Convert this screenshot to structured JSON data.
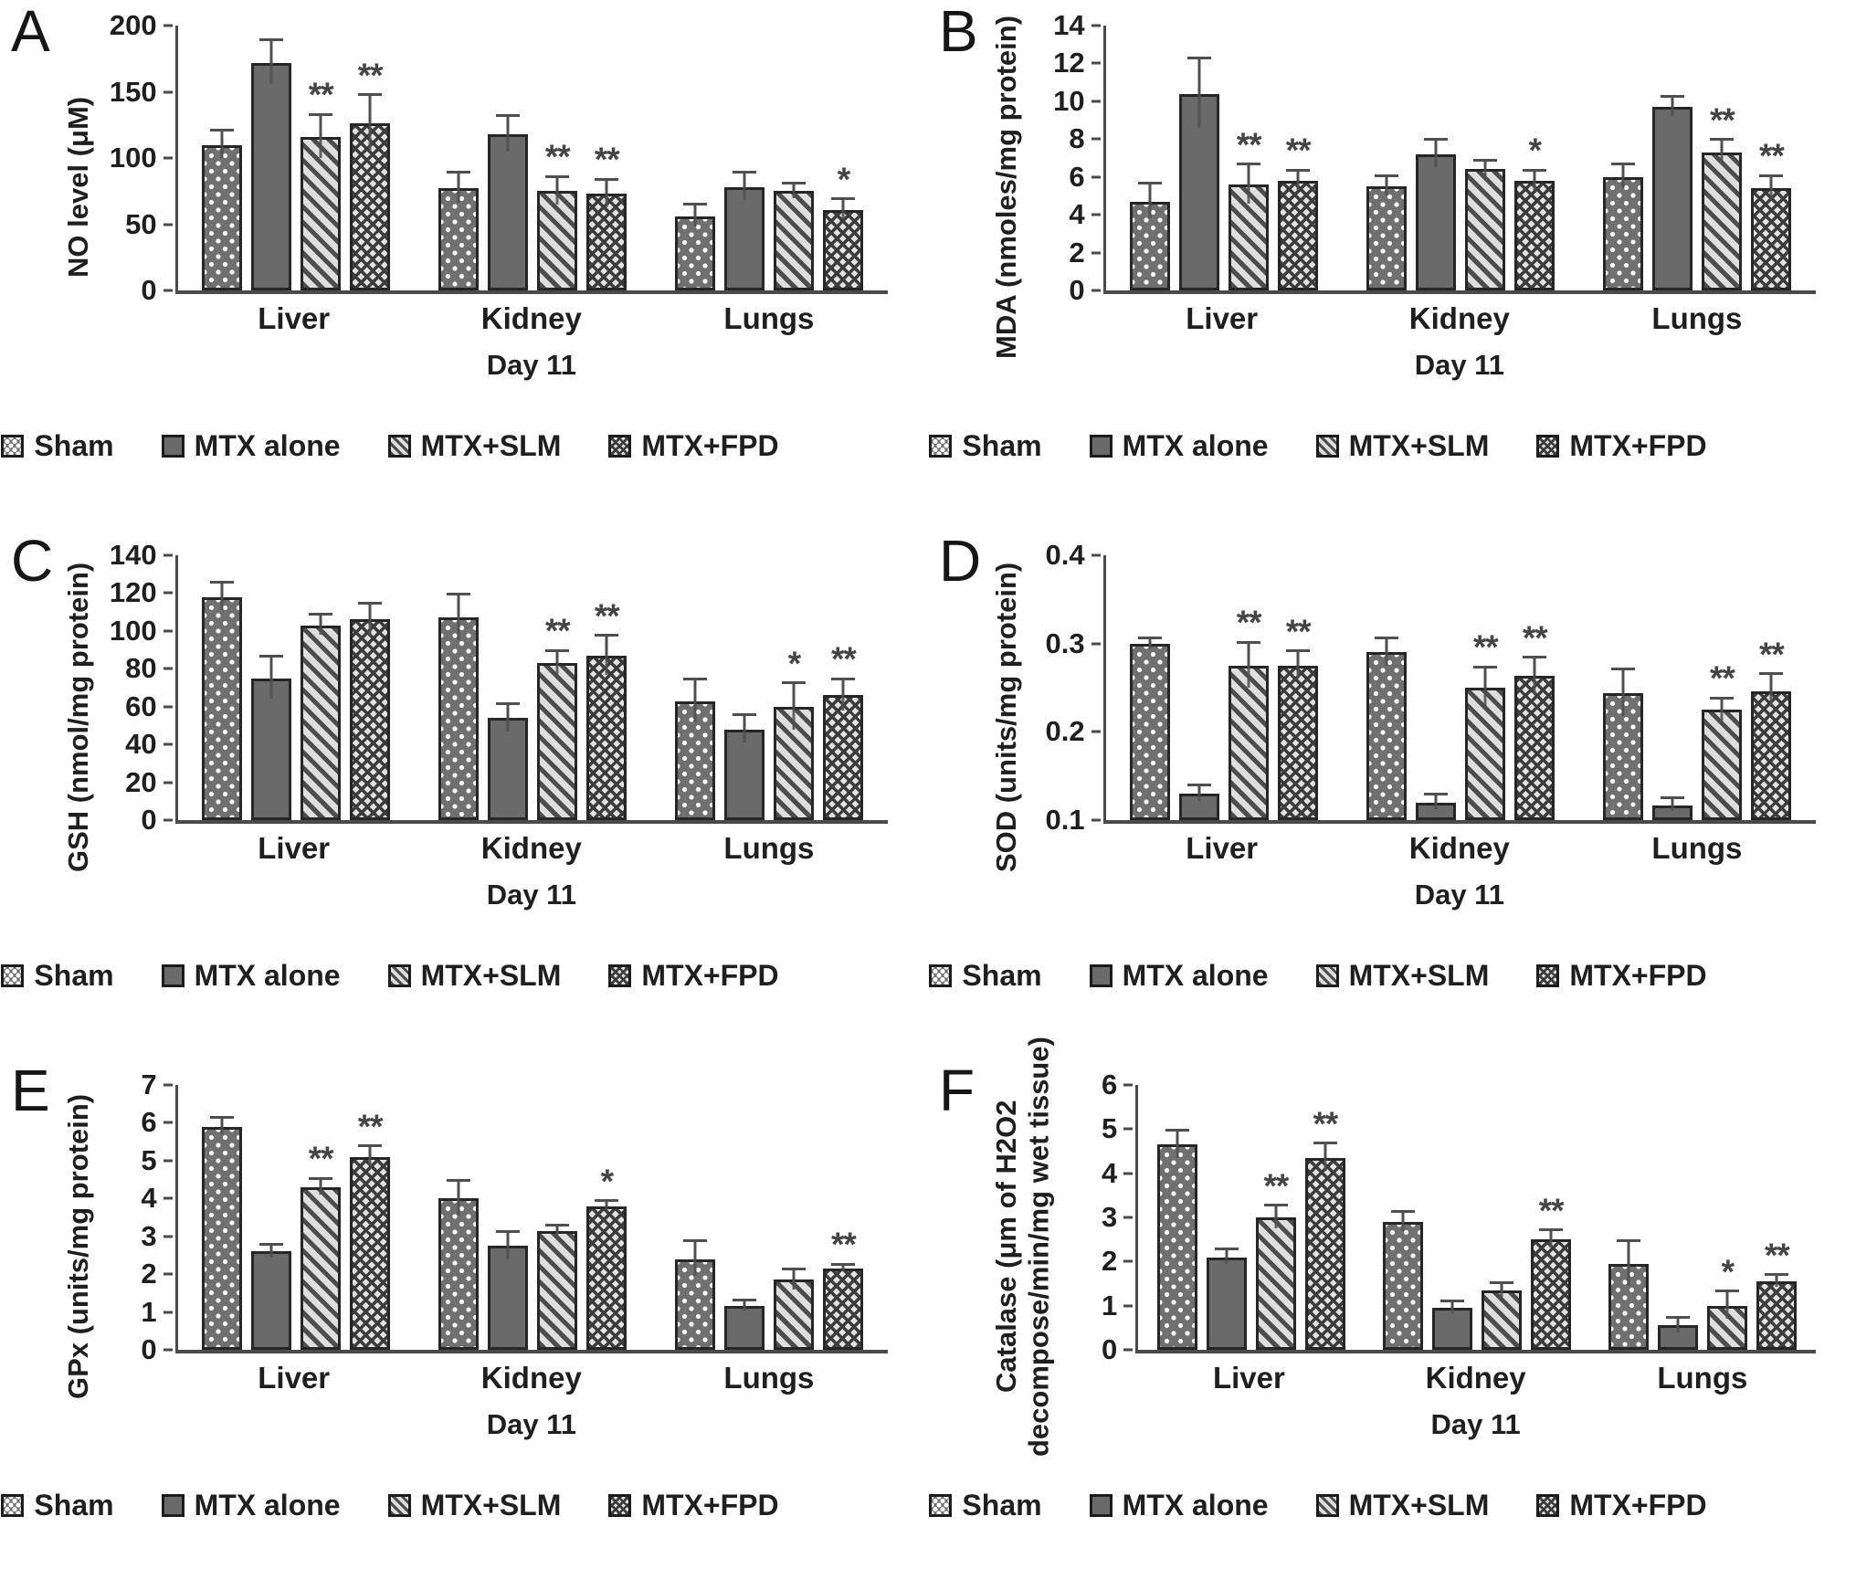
{
  "groups": [
    "Sham",
    "MTX alone",
    "MTX+SLM",
    "MTX+FPD"
  ],
  "significance_symbols": [
    "*",
    "**"
  ],
  "chart_data": [
    {
      "panel": "A",
      "type": "bar",
      "title": "",
      "ylabel": "NO level (μM)",
      "xlabel": "Day 11",
      "categories": [
        "Liver",
        "Kidney",
        "Lungs"
      ],
      "ylim": [
        0,
        200
      ],
      "yticks": [
        "0",
        "50",
        "100",
        "150",
        "200"
      ],
      "grid": false,
      "legend_position": "bottom",
      "legend": [
        "Sham",
        "MTX alone",
        "MTX+SLM",
        "MTX+FPD"
      ],
      "series": [
        {
          "name": "Sham",
          "values": [
            110,
            77,
            56
          ],
          "errors": [
            10,
            11,
            8
          ],
          "sig": [
            "",
            "",
            ""
          ]
        },
        {
          "name": "MTX alone",
          "values": [
            172,
            118,
            78
          ],
          "errors": [
            16,
            13,
            10
          ],
          "sig": [
            "",
            "",
            ""
          ]
        },
        {
          "name": "MTX+SLM",
          "values": [
            116,
            75,
            75
          ],
          "errors": [
            16,
            10,
            5
          ],
          "sig": [
            "**",
            "**",
            ""
          ]
        },
        {
          "name": "MTX+FPD",
          "values": [
            126,
            73,
            61
          ],
          "errors": [
            21,
            10,
            7
          ],
          "sig": [
            "**",
            "**",
            "*"
          ]
        }
      ]
    },
    {
      "panel": "B",
      "type": "bar",
      "title": "",
      "ylabel": "MDA (nmoles/mg protein)",
      "xlabel": "Day 11",
      "categories": [
        "Liver",
        "Kidney",
        "Lungs"
      ],
      "ylim": [
        0,
        14
      ],
      "yticks": [
        "0",
        "2",
        "4",
        "6",
        "8",
        "10",
        "12",
        "14"
      ],
      "grid": false,
      "legend_position": "bottom",
      "legend": [
        "Sham",
        "MTX alone",
        "MTX+SLM",
        "MTX+FPD"
      ],
      "series": [
        {
          "name": "Sham",
          "values": [
            4.7,
            5.5,
            6.0
          ],
          "errors": [
            0.9,
            0.5,
            0.6
          ],
          "sig": [
            "",
            "",
            ""
          ]
        },
        {
          "name": "MTX alone",
          "values": [
            10.4,
            7.2,
            9.7
          ],
          "errors": [
            1.8,
            0.7,
            0.5
          ],
          "sig": [
            "",
            "",
            ""
          ]
        },
        {
          "name": "MTX+SLM",
          "values": [
            5.6,
            6.4,
            7.3
          ],
          "errors": [
            1.0,
            0.4,
            0.6
          ],
          "sig": [
            "**",
            "",
            "**"
          ]
        },
        {
          "name": "MTX+FPD",
          "values": [
            5.8,
            5.8,
            5.4
          ],
          "errors": [
            0.5,
            0.5,
            0.6
          ],
          "sig": [
            "**",
            "*",
            "**"
          ]
        }
      ]
    },
    {
      "panel": "C",
      "type": "bar",
      "title": "",
      "ylabel": "GSH (nmol/mg protein)",
      "xlabel": "Day 11",
      "categories": [
        "Liver",
        "Kidney",
        "Lungs"
      ],
      "ylim": [
        0,
        140
      ],
      "yticks": [
        "0",
        "20",
        "40",
        "60",
        "80",
        "100",
        "120",
        "140"
      ],
      "grid": false,
      "legend_position": "bottom",
      "legend": [
        "Sham",
        "MTX alone",
        "MTX+SLM",
        "MTX+FPD"
      ],
      "series": [
        {
          "name": "Sham",
          "values": [
            118,
            107,
            63
          ],
          "errors": [
            7,
            12,
            11
          ],
          "sig": [
            "",
            "",
            ""
          ]
        },
        {
          "name": "MTX alone",
          "values": [
            75,
            54,
            48
          ],
          "errors": [
            11,
            7,
            7
          ],
          "sig": [
            "",
            "",
            ""
          ]
        },
        {
          "name": "MTX+SLM",
          "values": [
            103,
            83,
            60
          ],
          "errors": [
            5,
            6,
            12
          ],
          "sig": [
            "",
            "**",
            "*"
          ]
        },
        {
          "name": "MTX+FPD",
          "values": [
            106,
            87,
            66
          ],
          "errors": [
            8,
            10,
            8
          ],
          "sig": [
            "",
            "**",
            "**"
          ]
        }
      ]
    },
    {
      "panel": "D",
      "type": "bar",
      "title": "",
      "ylabel": "SOD (units/mg protein)",
      "xlabel": "Day 11",
      "categories": [
        "Liver",
        "Kidney",
        "Lungs"
      ],
      "ylim": [
        0.1,
        0.4
      ],
      "yticks": [
        "0.1",
        "0.2",
        "0.3",
        "0.4"
      ],
      "grid": false,
      "legend_position": "bottom",
      "legend": [
        "Sham",
        "MTX alone",
        "MTX+SLM",
        "MTX+FPD"
      ],
      "series": [
        {
          "name": "Sham",
          "values": [
            0.3,
            0.29,
            0.244
          ],
          "errors": [
            0.005,
            0.015,
            0.026
          ],
          "sig": [
            "",
            "",
            ""
          ]
        },
        {
          "name": "MTX alone",
          "values": [
            0.13,
            0.12,
            0.117
          ],
          "errors": [
            0.008,
            0.008,
            0.007
          ],
          "sig": [
            "",
            "",
            ""
          ]
        },
        {
          "name": "MTX+SLM",
          "values": [
            0.275,
            0.25,
            0.225
          ],
          "errors": [
            0.025,
            0.022,
            0.012
          ],
          "sig": [
            "**",
            "**",
            "**"
          ]
        },
        {
          "name": "MTX+FPD",
          "values": [
            0.275,
            0.263,
            0.246
          ],
          "errors": [
            0.015,
            0.02,
            0.018
          ],
          "sig": [
            "**",
            "**",
            "**"
          ]
        }
      ]
    },
    {
      "panel": "E",
      "type": "bar",
      "title": "",
      "ylabel": "GPx (units/mg protein)",
      "xlabel": "Day 11",
      "categories": [
        "Liver",
        "Kidney",
        "Lungs"
      ],
      "ylim": [
        0,
        7
      ],
      "yticks": [
        "0",
        "1",
        "2",
        "3",
        "4",
        "5",
        "6",
        "7"
      ],
      "grid": false,
      "legend_position": "bottom",
      "legend": [
        "Sham",
        "MTX alone",
        "MTX+SLM",
        "MTX+FPD"
      ],
      "series": [
        {
          "name": "Sham",
          "values": [
            5.9,
            4.0,
            2.4
          ],
          "errors": [
            0.2,
            0.45,
            0.45
          ],
          "sig": [
            "",
            "",
            ""
          ]
        },
        {
          "name": "MTX alone",
          "values": [
            2.6,
            2.75,
            1.15
          ],
          "errors": [
            0.15,
            0.35,
            0.12
          ],
          "sig": [
            "",
            "",
            ""
          ]
        },
        {
          "name": "MTX+SLM",
          "values": [
            4.3,
            3.15,
            1.85
          ],
          "errors": [
            0.2,
            0.1,
            0.25
          ],
          "sig": [
            "**",
            "",
            ""
          ]
        },
        {
          "name": "MTX+FPD",
          "values": [
            5.1,
            3.8,
            2.15
          ],
          "errors": [
            0.25,
            0.1,
            0.08
          ],
          "sig": [
            "**",
            "*",
            "**"
          ]
        }
      ]
    },
    {
      "panel": "F",
      "type": "bar",
      "title": "",
      "ylabel": "Catalase (μm of H2O2 decompose/min/mg wet tissue)",
      "xlabel": "Day 11",
      "categories": [
        "Liver",
        "Kidney",
        "Lungs"
      ],
      "ylim": [
        0,
        6
      ],
      "yticks": [
        "0",
        "1",
        "2",
        "3",
        "4",
        "5",
        "6"
      ],
      "grid": false,
      "legend_position": "bottom",
      "legend": [
        "Sham",
        "MTX alone",
        "MTX+SLM",
        "MTX+FPD"
      ],
      "series": [
        {
          "name": "Sham",
          "values": [
            4.65,
            2.9,
            1.95
          ],
          "errors": [
            0.3,
            0.2,
            0.5
          ],
          "sig": [
            "",
            "",
            ""
          ]
        },
        {
          "name": "MTX alone",
          "values": [
            2.1,
            0.95,
            0.55
          ],
          "errors": [
            0.15,
            0.12,
            0.15
          ],
          "sig": [
            "",
            "",
            ""
          ]
        },
        {
          "name": "MTX+SLM",
          "values": [
            3.0,
            1.35,
            1.0
          ],
          "errors": [
            0.25,
            0.15,
            0.3
          ],
          "sig": [
            "**",
            "",
            "*"
          ]
        },
        {
          "name": "MTX+FPD",
          "values": [
            4.35,
            2.5,
            1.55
          ],
          "errors": [
            0.3,
            0.18,
            0.12
          ],
          "sig": [
            "**",
            "**",
            "**"
          ]
        }
      ]
    }
  ]
}
